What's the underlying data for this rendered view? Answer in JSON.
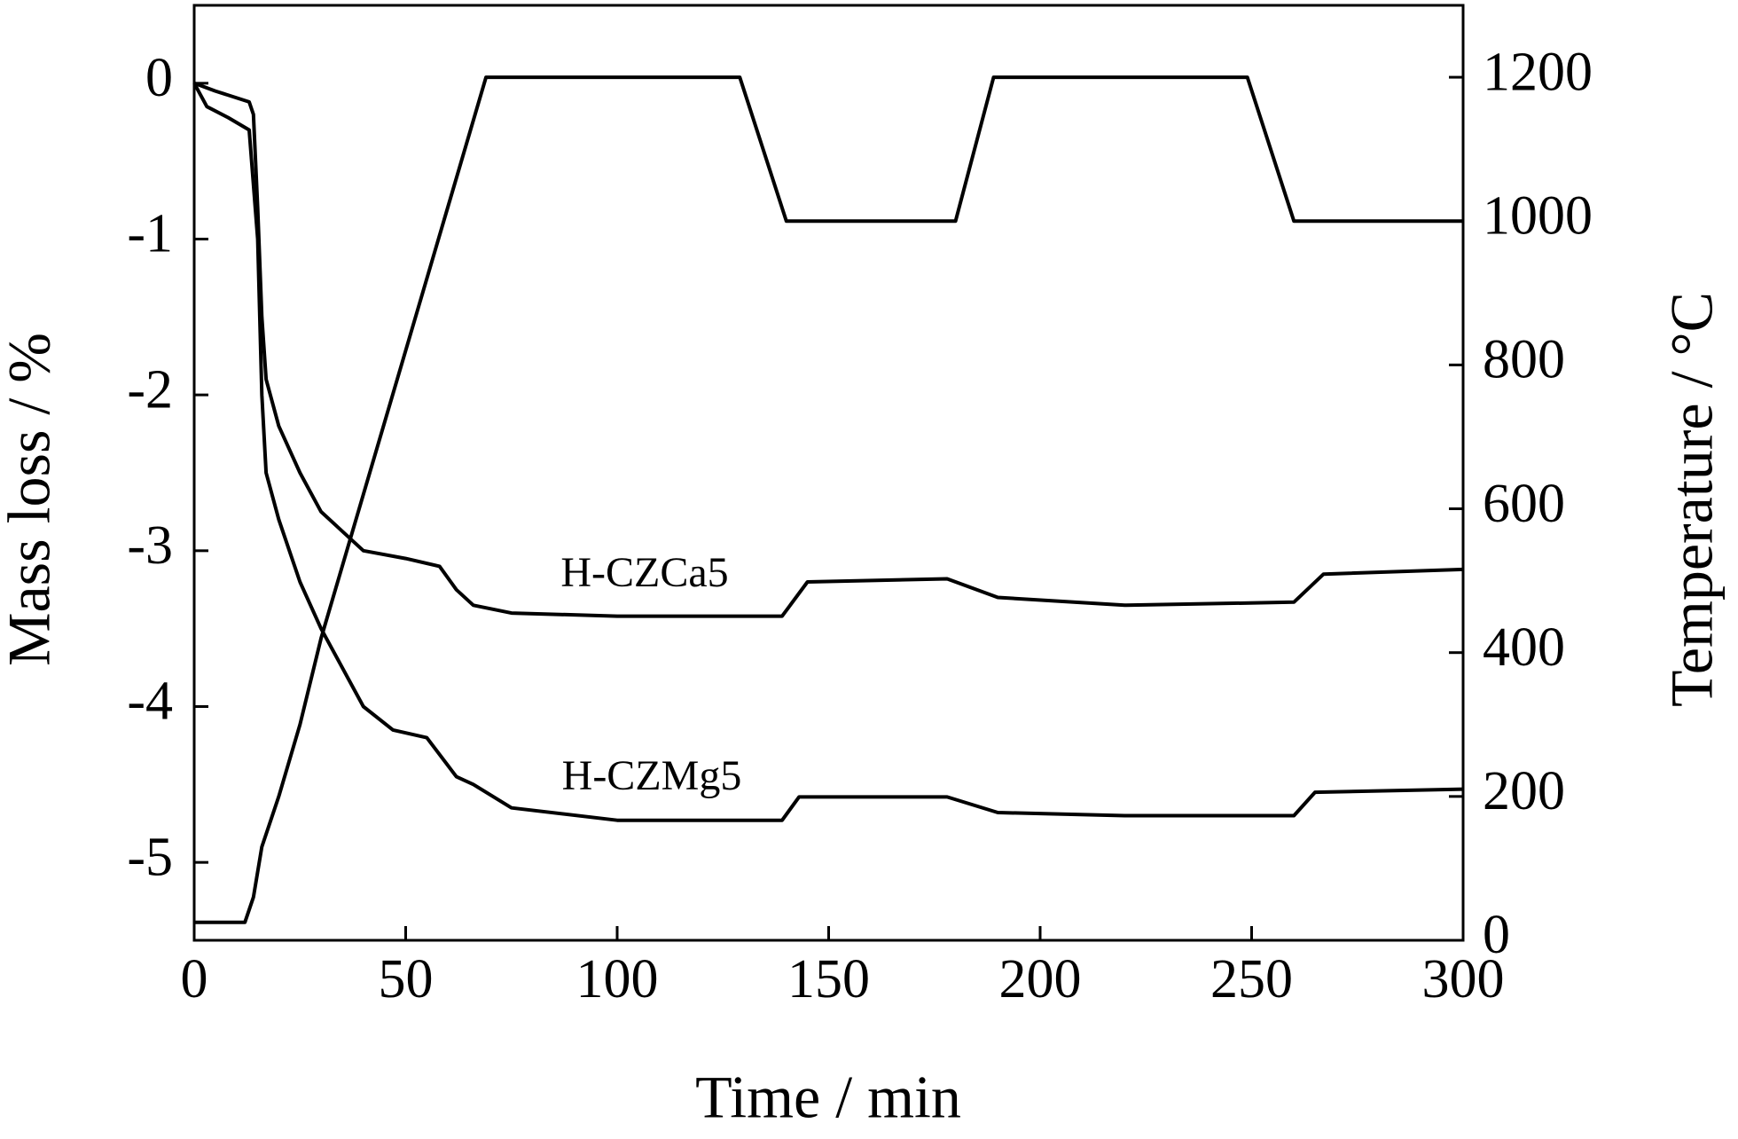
{
  "chart_data": {
    "type": "line",
    "x_label": "Time / min",
    "y_label": "Mass loss / %",
    "y2_label": "Temperature / °C",
    "xlim": [
      0,
      300
    ],
    "xticks": [
      0,
      50,
      100,
      150,
      200,
      250,
      300
    ],
    "ylim": [
      -5.5,
      0.5
    ],
    "yticks": [
      0,
      -1,
      -2,
      -3,
      -4,
      -5
    ],
    "y2lim": [
      0,
      1300
    ],
    "y2ticks": [
      0,
      200,
      400,
      600,
      800,
      1000,
      1200
    ],
    "series": [
      {
        "name": "H-CZCa5",
        "color": "#000000",
        "x": [
          0,
          5,
          13,
          14,
          15,
          16,
          17,
          20,
          25,
          30,
          40,
          50,
          58,
          62,
          66,
          75,
          100,
          139,
          145,
          178,
          190,
          220,
          260,
          267,
          300
        ],
        "values": [
          0,
          -0.05,
          -0.12,
          -0.2,
          -0.8,
          -1.5,
          -1.9,
          -2.2,
          -2.5,
          -2.75,
          -3.0,
          -3.05,
          -3.1,
          -3.25,
          -3.35,
          -3.4,
          -3.42,
          -3.42,
          -3.2,
          -3.18,
          -3.3,
          -3.35,
          -3.33,
          -3.15,
          -3.12
        ]
      },
      {
        "name": "H-CZMg5",
        "color": "#000000",
        "x": [
          0,
          3,
          8,
          13,
          15,
          16,
          17,
          20,
          25,
          30,
          40,
          47,
          55,
          62,
          66,
          75,
          100,
          139,
          143,
          178,
          190,
          220,
          260,
          265,
          300
        ],
        "values": [
          0,
          -0.15,
          -0.22,
          -0.3,
          -1.0,
          -2.0,
          -2.5,
          -2.8,
          -3.2,
          -3.5,
          -4.0,
          -4.15,
          -4.2,
          -4.45,
          -4.5,
          -4.65,
          -4.73,
          -4.73,
          -4.58,
          -4.58,
          -4.68,
          -4.7,
          -4.7,
          -4.55,
          -4.53
        ]
      },
      {
        "color": "#000000",
        "axis": "y2",
        "x": [
          0,
          12,
          14,
          16,
          20,
          25,
          30,
          40,
          50,
          60,
          69,
          129,
          140,
          180,
          189,
          249,
          260,
          300
        ],
        "values": [
          25,
          25,
          60,
          130,
          200,
          300,
          420,
          620,
          820,
          1020,
          1200,
          1200,
          1000,
          1000,
          1200,
          1200,
          1000,
          1000
        ]
      }
    ]
  }
}
